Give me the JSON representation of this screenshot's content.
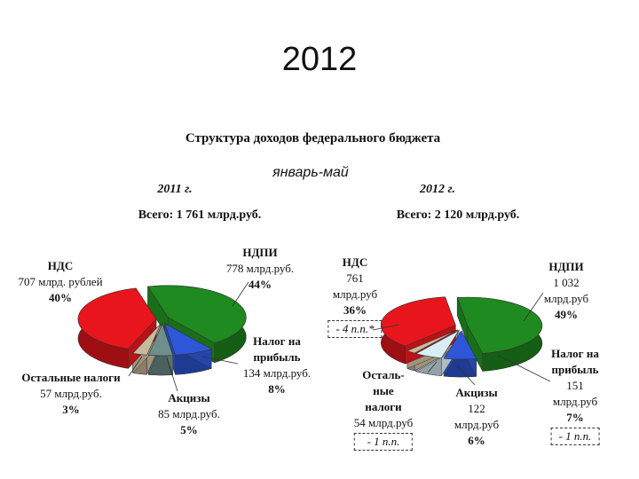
{
  "title": "2012",
  "subtitle": "Структура доходов федерального бюджета",
  "period": "январь-май",
  "chart_data": [
    {
      "type": "pie",
      "title": "2011 г.",
      "total": "Всего: 1 761 млрд.руб.",
      "categories": [
        "НДПИ",
        "Налог на\nприбыль",
        "Акцизы",
        "Остальные налоги",
        "НДС"
      ],
      "amount_labels": [
        "778 млрд.руб.",
        "134 млрд.руб.",
        "85 млрд.руб.",
        "57 млрд.руб.",
        "707 млрд. рублей"
      ],
      "values": [
        44,
        8,
        5,
        3,
        40
      ],
      "value_labels": [
        "44%",
        "8%",
        "5%",
        "3%",
        "40%"
      ],
      "colors": [
        "#1f8a1f",
        "#2e56d8",
        "#6e8f8c",
        "#c9b99b",
        "#e8161c"
      ]
    },
    {
      "type": "pie",
      "title": "2012 г.",
      "total": "Всего: 2 120 млрд.руб.",
      "categories": [
        "НДПИ",
        "Налог на\nприбыль",
        "Акцизы",
        "Осталь-\nные\nналоги",
        "НДС"
      ],
      "amount_labels": [
        "1 032\nмлрд.руб",
        "151\nмлрд.руб",
        "122\nмлрд.руб",
        "54 млрд.руб",
        "761\nмлрд.руб"
      ],
      "values": [
        49,
        7,
        6,
        2,
        36
      ],
      "value_labels": [
        "49%",
        "7%",
        "6%",
        null,
        "36%"
      ],
      "notes": [
        null,
        "- 1 п.п.",
        null,
        "- 1 п.п.",
        "- 4 п.п.*"
      ],
      "colors": [
        "#1f8a1f",
        "#2e56d8",
        "#d8eef6",
        "#c9b99b",
        "#e8161c"
      ]
    }
  ]
}
